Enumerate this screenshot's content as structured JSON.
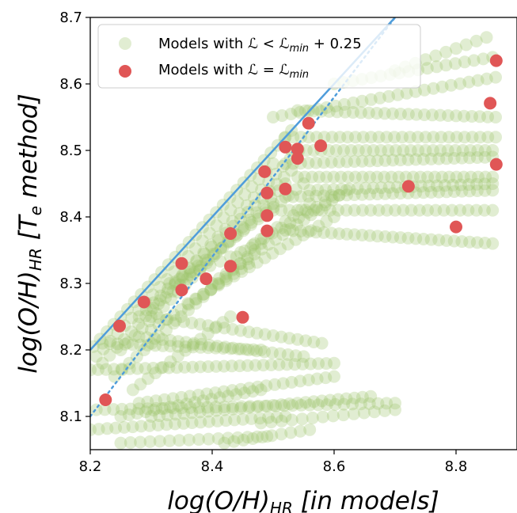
{
  "chart_data": {
    "type": "scatter",
    "xlabel": "log(O/H)_HR [in models]",
    "ylabel": "log(O/H)_HR [T_e method]",
    "xlim": [
      8.2,
      8.9
    ],
    "ylim": [
      8.05,
      8.7
    ],
    "xticks": [
      "8.2",
      "8.4",
      "8.6",
      "8.8"
    ],
    "yticks": [
      "8.1",
      "8.2",
      "8.3",
      "8.4",
      "8.5",
      "8.6",
      "8.7"
    ],
    "legend_position": "top-left",
    "series": [
      {
        "name": "Models with ℒ < ℒ_min + 0.25",
        "color": "#9dc36b",
        "marker": "circle",
        "opacity": 0.3,
        "tracks": [
          {
            "x0": 8.205,
            "y0": 8.205,
            "x1": 8.53,
            "y1": 8.53,
            "n": 30
          },
          {
            "x0": 8.21,
            "y0": 8.19,
            "x1": 8.5,
            "y1": 8.48,
            "n": 26
          },
          {
            "x0": 8.22,
            "y0": 8.18,
            "x1": 8.54,
            "y1": 8.5,
            "n": 28
          },
          {
            "x0": 8.25,
            "y0": 8.2,
            "x1": 8.52,
            "y1": 8.45,
            "n": 24
          },
          {
            "x0": 8.28,
            "y0": 8.25,
            "x1": 8.53,
            "y1": 8.47,
            "n": 22
          },
          {
            "x0": 8.3,
            "y0": 8.26,
            "x1": 8.5,
            "y1": 8.42,
            "n": 18
          },
          {
            "x0": 8.34,
            "y0": 8.3,
            "x1": 8.55,
            "y1": 8.45,
            "n": 18
          },
          {
            "x0": 8.24,
            "y0": 8.16,
            "x1": 8.47,
            "y1": 8.35,
            "n": 20
          },
          {
            "x0": 8.3,
            "y0": 8.23,
            "x1": 8.46,
            "y1": 8.33,
            "n": 14
          },
          {
            "x0": 8.27,
            "y0": 8.14,
            "x1": 8.43,
            "y1": 8.25,
            "n": 14
          },
          {
            "x0": 8.36,
            "y0": 8.27,
            "x1": 8.6,
            "y1": 8.4,
            "n": 20
          },
          {
            "x0": 8.4,
            "y0": 8.3,
            "x1": 8.62,
            "y1": 8.44,
            "n": 20
          },
          {
            "x0": 8.44,
            "y0": 8.34,
            "x1": 8.56,
            "y1": 8.42,
            "n": 10
          },
          {
            "x0": 8.5,
            "y0": 8.55,
            "x1": 8.865,
            "y1": 8.61,
            "n": 26
          },
          {
            "x0": 8.54,
            "y0": 8.56,
            "x1": 8.865,
            "y1": 8.55,
            "n": 26
          },
          {
            "x0": 8.52,
            "y0": 8.52,
            "x1": 8.865,
            "y1": 8.52,
            "n": 28
          },
          {
            "x0": 8.53,
            "y0": 8.5,
            "x1": 8.86,
            "y1": 8.5,
            "n": 28
          },
          {
            "x0": 8.52,
            "y0": 8.48,
            "x1": 8.86,
            "y1": 8.49,
            "n": 28
          },
          {
            "x0": 8.54,
            "y0": 8.46,
            "x1": 8.86,
            "y1": 8.46,
            "n": 28
          },
          {
            "x0": 8.52,
            "y0": 8.43,
            "x1": 8.86,
            "y1": 8.44,
            "n": 28
          },
          {
            "x0": 8.56,
            "y0": 8.44,
            "x1": 8.86,
            "y1": 8.45,
            "n": 24
          },
          {
            "x0": 8.5,
            "y0": 8.41,
            "x1": 8.86,
            "y1": 8.41,
            "n": 28
          },
          {
            "x0": 8.52,
            "y0": 8.38,
            "x1": 8.86,
            "y1": 8.36,
            "n": 28
          },
          {
            "x0": 8.6,
            "y0": 8.6,
            "x1": 8.86,
            "y1": 8.64,
            "n": 18
          },
          {
            "x0": 8.7,
            "y0": 8.62,
            "x1": 8.85,
            "y1": 8.67,
            "n": 10
          },
          {
            "x0": 8.47,
            "y0": 8.36,
            "x1": 8.6,
            "y1": 8.43,
            "n": 10
          },
          {
            "x0": 8.33,
            "y0": 8.3,
            "x1": 8.48,
            "y1": 8.36,
            "n": 10
          },
          {
            "x0": 8.3,
            "y0": 8.25,
            "x1": 8.58,
            "y1": 8.21,
            "n": 22
          },
          {
            "x0": 8.28,
            "y0": 8.22,
            "x1": 8.55,
            "y1": 8.19,
            "n": 22
          },
          {
            "x0": 8.22,
            "y0": 8.21,
            "x1": 8.48,
            "y1": 8.2,
            "n": 22
          },
          {
            "x0": 8.2,
            "y0": 8.17,
            "x1": 8.6,
            "y1": 8.18,
            "n": 32
          },
          {
            "x0": 8.21,
            "y0": 8.11,
            "x1": 8.7,
            "y1": 8.12,
            "n": 36
          },
          {
            "x0": 8.28,
            "y0": 8.12,
            "x1": 8.6,
            "y1": 8.16,
            "n": 24
          },
          {
            "x0": 8.25,
            "y0": 8.1,
            "x1": 8.48,
            "y1": 8.14,
            "n": 18
          },
          {
            "x0": 8.3,
            "y0": 8.1,
            "x1": 8.66,
            "y1": 8.13,
            "n": 28
          },
          {
            "x0": 8.2,
            "y0": 8.08,
            "x1": 8.52,
            "y1": 8.1,
            "n": 24
          },
          {
            "x0": 8.25,
            "y0": 8.06,
            "x1": 8.49,
            "y1": 8.07,
            "n": 16
          },
          {
            "x0": 8.42,
            "y0": 8.06,
            "x1": 8.56,
            "y1": 8.08,
            "n": 10
          },
          {
            "x0": 8.48,
            "y0": 8.09,
            "x1": 8.7,
            "y1": 8.11,
            "n": 14
          }
        ]
      },
      {
        "name": "Models with ℒ = ℒ_min",
        "color": "#e05656",
        "marker": "circle",
        "points": [
          {
            "x": 8.225,
            "y": 8.125
          },
          {
            "x": 8.248,
            "y": 8.236
          },
          {
            "x": 8.288,
            "y": 8.272
          },
          {
            "x": 8.35,
            "y": 8.33
          },
          {
            "x": 8.35,
            "y": 8.29
          },
          {
            "x": 8.39,
            "y": 8.307
          },
          {
            "x": 8.43,
            "y": 8.326
          },
          {
            "x": 8.43,
            "y": 8.375
          },
          {
            "x": 8.45,
            "y": 8.249
          },
          {
            "x": 8.486,
            "y": 8.468
          },
          {
            "x": 8.49,
            "y": 8.436
          },
          {
            "x": 8.49,
            "y": 8.402
          },
          {
            "x": 8.49,
            "y": 8.379
          },
          {
            "x": 8.52,
            "y": 8.442
          },
          {
            "x": 8.52,
            "y": 8.505
          },
          {
            "x": 8.54,
            "y": 8.502
          },
          {
            "x": 8.54,
            "y": 8.488
          },
          {
            "x": 8.558,
            "y": 8.541
          },
          {
            "x": 8.578,
            "y": 8.507
          },
          {
            "x": 8.722,
            "y": 8.446
          },
          {
            "x": 8.8,
            "y": 8.385
          },
          {
            "x": 8.856,
            "y": 8.571
          },
          {
            "x": 8.866,
            "y": 8.635
          },
          {
            "x": 8.866,
            "y": 8.479
          }
        ]
      }
    ],
    "reference_lines": [
      {
        "style": "solid",
        "color": "#4f9ddb",
        "x": [
          8.2,
          8.7
        ],
        "y": [
          8.2,
          8.7
        ]
      },
      {
        "style": "dotted",
        "color": "#4f9ddb",
        "x": [
          8.2,
          8.7
        ],
        "y": [
          8.1,
          8.7
        ]
      }
    ]
  }
}
